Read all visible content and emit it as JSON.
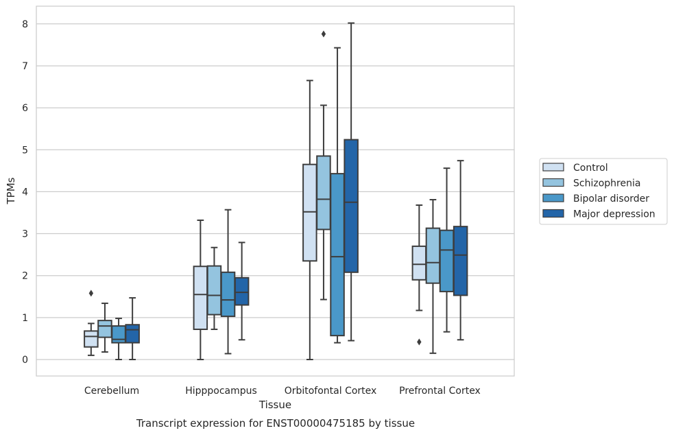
{
  "chart_data": {
    "type": "boxplot",
    "caption": "Transcript expression for ENST00000475185 by tissue",
    "xlabel": "Tissue",
    "ylabel": "TPMs",
    "ylim": [
      -0.4,
      8.43
    ],
    "yticks": [
      0,
      1,
      2,
      3,
      4,
      5,
      6,
      7,
      8
    ],
    "grid": true,
    "legend_position": "right",
    "categories": [
      "Cerebellum",
      "Hipppocampus",
      "Orbitofontal Cortex",
      "Prefrontal Cortex"
    ],
    "series": [
      {
        "name": "Control",
        "color": "#d0e1f2",
        "boxes": [
          {
            "whislo": 0.1,
            "q1": 0.3,
            "med": 0.55,
            "q3": 0.68,
            "whishi": 0.86,
            "fliers": [
              1.58
            ]
          },
          {
            "whislo": 0.0,
            "q1": 0.72,
            "med": 1.55,
            "q3": 2.22,
            "whishi": 3.32,
            "fliers": []
          },
          {
            "whislo": 0.0,
            "q1": 2.35,
            "med": 3.52,
            "q3": 4.65,
            "whishi": 6.65,
            "fliers": []
          },
          {
            "whislo": 1.17,
            "q1": 1.9,
            "med": 2.27,
            "q3": 2.7,
            "whishi": 3.68,
            "fliers": [
              0.42
            ]
          }
        ]
      },
      {
        "name": "Schizophrenia",
        "color": "#94c4df",
        "boxes": [
          {
            "whislo": 0.18,
            "q1": 0.53,
            "med": 0.8,
            "q3": 0.93,
            "whishi": 1.34,
            "fliers": []
          },
          {
            "whislo": 0.72,
            "q1": 1.07,
            "med": 1.53,
            "q3": 2.23,
            "whishi": 2.67,
            "fliers": []
          },
          {
            "whislo": 1.43,
            "q1": 3.1,
            "med": 3.82,
            "q3": 4.85,
            "whishi": 6.06,
            "fliers": [
              7.76
            ]
          },
          {
            "whislo": 0.15,
            "q1": 1.82,
            "med": 2.31,
            "q3": 3.13,
            "whishi": 3.81,
            "fliers": []
          }
        ]
      },
      {
        "name": "Bipolar disorder",
        "color": "#4a98c9",
        "boxes": [
          {
            "whislo": 0.0,
            "q1": 0.4,
            "med": 0.48,
            "q3": 0.8,
            "whishi": 0.98,
            "fliers": []
          },
          {
            "whislo": 0.14,
            "q1": 1.03,
            "med": 1.42,
            "q3": 2.08,
            "whishi": 3.57,
            "fliers": []
          },
          {
            "whislo": 0.4,
            "q1": 0.57,
            "med": 2.45,
            "q3": 4.43,
            "whishi": 7.43,
            "fliers": []
          },
          {
            "whislo": 0.66,
            "q1": 1.62,
            "med": 2.61,
            "q3": 3.08,
            "whishi": 4.56,
            "fliers": []
          }
        ]
      },
      {
        "name": "Major depression",
        "color": "#2365a8",
        "boxes": [
          {
            "whislo": 0.0,
            "q1": 0.4,
            "med": 0.71,
            "q3": 0.83,
            "whishi": 1.47,
            "fliers": []
          },
          {
            "whislo": 0.47,
            "q1": 1.3,
            "med": 1.6,
            "q3": 1.95,
            "whishi": 2.79,
            "fliers": []
          },
          {
            "whislo": 0.45,
            "q1": 2.08,
            "med": 3.75,
            "q3": 5.24,
            "whishi": 8.02,
            "fliers": []
          },
          {
            "whislo": 0.47,
            "q1": 1.53,
            "med": 2.49,
            "q3": 3.17,
            "whishi": 4.74,
            "fliers": []
          }
        ]
      }
    ]
  }
}
